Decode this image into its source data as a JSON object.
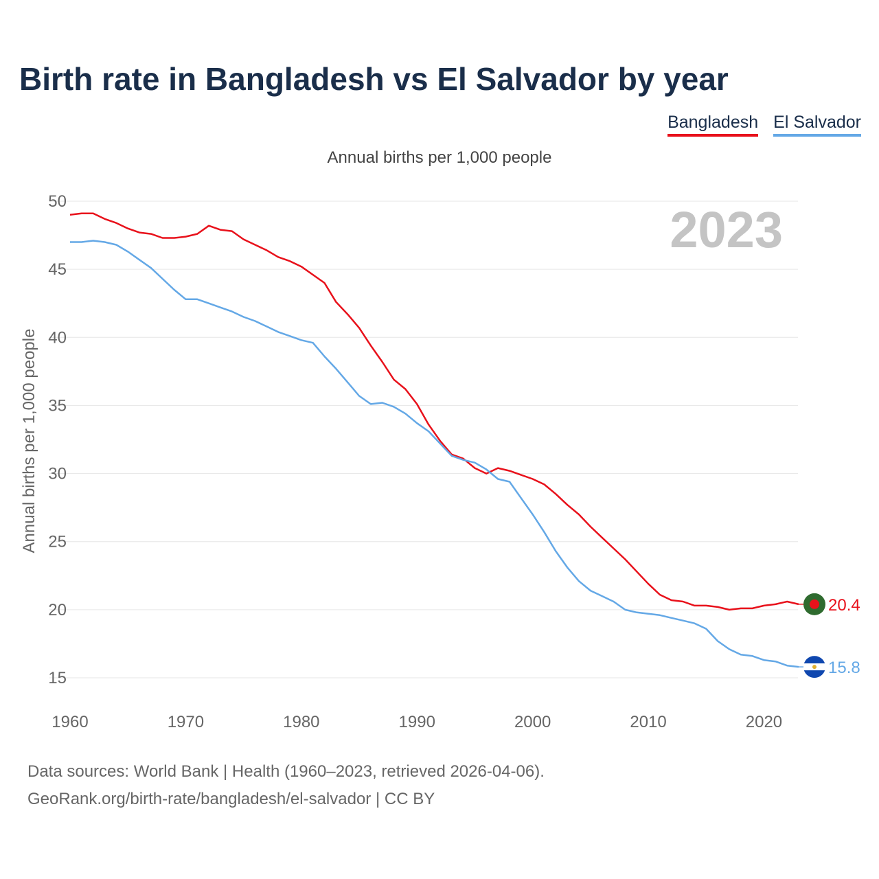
{
  "title": "Birth rate in Bangladesh vs El Salvador by year",
  "subtitle": "Annual births per 1,000 people",
  "legend": [
    "Bangladesh",
    "El Salvador"
  ],
  "year_label": "2023",
  "footer": {
    "line1": "Data sources: World Bank | Health (1960–2023, retrieved 2026-04-06).",
    "line2": "GeoRank.org/birth-rate/bangladesh/el-salvador | CC BY"
  },
  "colors": {
    "bangladesh": "#e8111b",
    "el_salvador": "#64a8e6",
    "grid": "#e6e6e6",
    "year": "#c4c4c4"
  },
  "chart_data": {
    "type": "line",
    "title": "Birth rate in Bangladesh vs El Salvador by year",
    "xlabel": "",
    "ylabel": "Annual births per 1,000 people",
    "xlim": [
      1960,
      2023
    ],
    "ylim": [
      15,
      50
    ],
    "yticks": [
      15,
      20,
      25,
      30,
      35,
      40,
      45,
      50
    ],
    "xticks": [
      1960,
      1970,
      1980,
      1990,
      2000,
      2010,
      2020
    ],
    "x": [
      1960,
      1961,
      1962,
      1963,
      1964,
      1965,
      1966,
      1967,
      1968,
      1969,
      1970,
      1971,
      1972,
      1973,
      1974,
      1975,
      1976,
      1977,
      1978,
      1979,
      1980,
      1981,
      1982,
      1983,
      1984,
      1985,
      1986,
      1987,
      1988,
      1989,
      1990,
      1991,
      1992,
      1993,
      1994,
      1995,
      1996,
      1997,
      1998,
      1999,
      2000,
      2001,
      2002,
      2003,
      2004,
      2005,
      2006,
      2007,
      2008,
      2009,
      2010,
      2011,
      2012,
      2013,
      2014,
      2015,
      2016,
      2017,
      2018,
      2019,
      2020,
      2021,
      2022,
      2023
    ],
    "series": [
      {
        "name": "Bangladesh",
        "color": "#e8111b",
        "end_label": "20.4",
        "values": [
          49.0,
          49.1,
          49.1,
          48.7,
          48.4,
          48.0,
          47.7,
          47.6,
          47.3,
          47.3,
          47.4,
          47.6,
          48.2,
          47.9,
          47.8,
          47.2,
          46.8,
          46.4,
          45.9,
          45.6,
          45.2,
          44.6,
          44.0,
          42.6,
          41.7,
          40.7,
          39.4,
          38.2,
          36.9,
          36.2,
          35.1,
          33.6,
          32.4,
          31.4,
          31.1,
          30.4,
          30.0,
          30.4,
          30.2,
          29.9,
          29.6,
          29.2,
          28.5,
          27.7,
          27.0,
          26.1,
          25.3,
          24.5,
          23.7,
          22.8,
          21.9,
          21.1,
          20.7,
          20.6,
          20.3,
          20.3,
          20.2,
          20.0,
          20.1,
          20.1,
          20.3,
          20.4,
          20.6,
          20.4
        ]
      },
      {
        "name": "El Salvador",
        "color": "#64a8e6",
        "end_label": "15.8",
        "values": [
          47.0,
          47.0,
          47.1,
          47.0,
          46.8,
          46.3,
          45.7,
          45.1,
          44.3,
          43.5,
          42.8,
          42.8,
          42.5,
          42.2,
          41.9,
          41.5,
          41.2,
          40.8,
          40.4,
          40.1,
          39.8,
          39.6,
          38.6,
          37.7,
          36.7,
          35.7,
          35.1,
          35.2,
          34.9,
          34.4,
          33.7,
          33.1,
          32.2,
          31.3,
          31.0,
          30.8,
          30.3,
          29.6,
          29.4,
          28.2,
          27.0,
          25.7,
          24.3,
          23.1,
          22.1,
          21.4,
          21.0,
          20.6,
          20.0,
          19.8,
          19.7,
          19.6,
          19.4,
          19.2,
          19.0,
          18.6,
          17.7,
          17.1,
          16.7,
          16.6,
          16.3,
          16.2,
          15.9,
          15.8
        ]
      }
    ]
  }
}
